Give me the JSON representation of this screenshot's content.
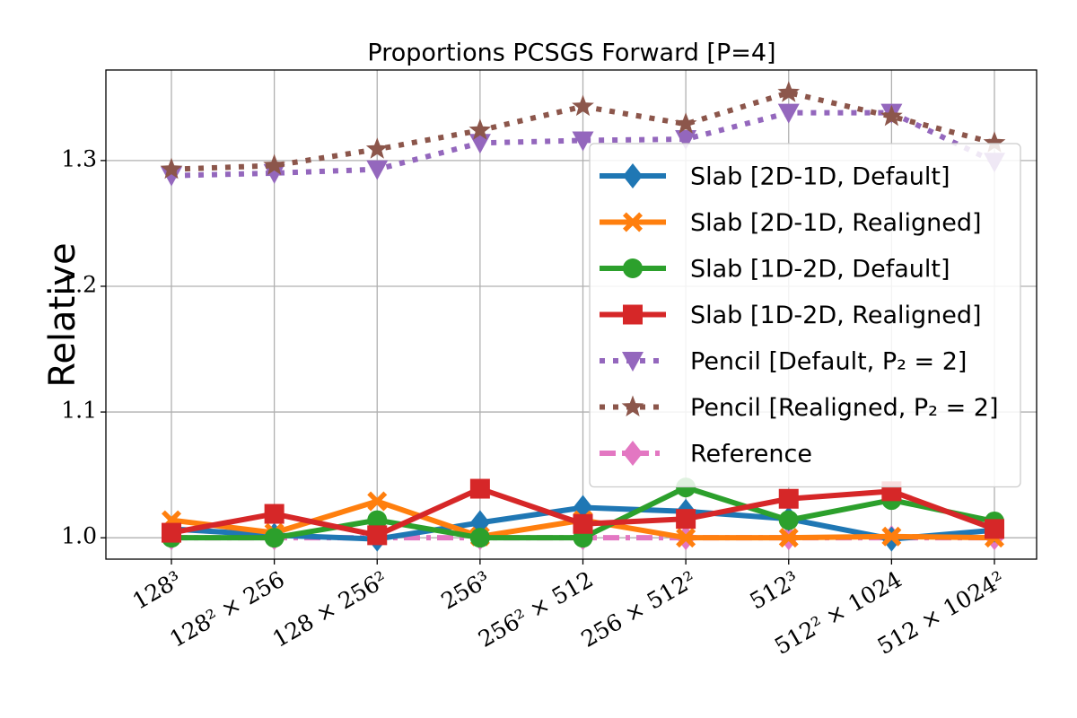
{
  "chart_data": {
    "type": "line",
    "title": "Proportions PCSGS Forward [P=4]",
    "y_label": "Relative",
    "categories": [
      "128³",
      "128² × 256",
      "128 × 256²",
      "256³",
      "256² × 512",
      "256 × 512²",
      "512³",
      "512² × 1024",
      "512 × 1024²"
    ],
    "ylim": [
      0.983,
      1.372
    ],
    "yticks": [
      {
        "value": 1,
        "label": "1.0"
      },
      1.1,
      1.2,
      1.3
    ],
    "grid": true,
    "legend": "upper right",
    "series": [
      {
        "name": "Slab [2D-1D, Default]",
        "color": "#1f77b4",
        "marker": "diamond",
        "linestyle": "solid",
        "values": [
          1.007,
          1.002,
          0.999,
          1.012,
          1.024,
          1.021,
          1.015,
          0.999,
          1.006
        ]
      },
      {
        "name": "Slab [2D-1D, Realigned]",
        "color": "#ff7f0e",
        "marker": "x",
        "linestyle": "solid",
        "values": [
          1.014,
          1.004,
          1.029,
          1.001,
          1.014,
          1.0,
          1.0,
          1.001,
          1.0
        ]
      },
      {
        "name": "Slab [1D-2D, Default]",
        "color": "#2ca02c",
        "marker": "circle",
        "linestyle": "solid",
        "values": [
          1.0,
          1.0,
          1.014,
          1.0,
          1.0,
          1.04,
          1.014,
          1.03,
          1.013
        ]
      },
      {
        "name": "Slab [1D-2D, Realigned]",
        "color": "#d62728",
        "marker": "square",
        "linestyle": "solid",
        "values": [
          1.004,
          1.019,
          1.002,
          1.039,
          1.011,
          1.015,
          1.031,
          1.037,
          1.007
        ]
      },
      {
        "name": "Pencil [Default, P₂ = 2]",
        "color": "#9467bd",
        "marker": "triangle-down",
        "linestyle": "dotted",
        "values": [
          1.288,
          1.29,
          1.293,
          1.314,
          1.316,
          1.317,
          1.338,
          1.338,
          1.299
        ]
      },
      {
        "name": "Pencil [Realigned, P₂ = 2]",
        "color": "#8c564b",
        "marker": "star",
        "linestyle": "dotted",
        "values": [
          1.293,
          1.296,
          1.309,
          1.324,
          1.343,
          1.329,
          1.354,
          1.335,
          1.314
        ]
      },
      {
        "name": "Reference",
        "color": "#e377c2",
        "marker": "diamond",
        "linestyle": "dashdot",
        "values": [
          1,
          1,
          1,
          1,
          1,
          1,
          1,
          1,
          1
        ]
      }
    ]
  }
}
